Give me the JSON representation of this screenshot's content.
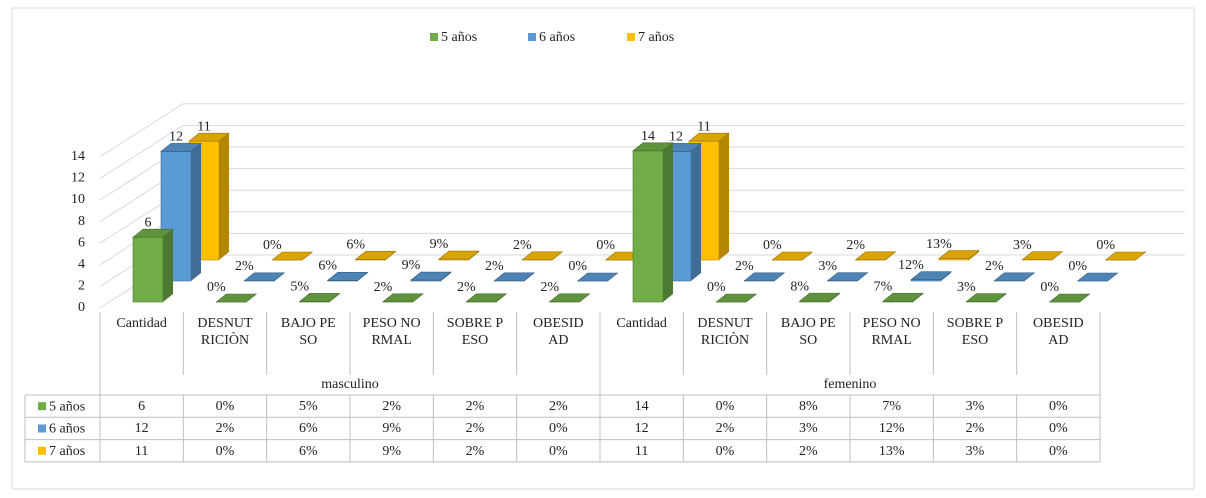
{
  "chart_data": {
    "type": "bar3d",
    "groups": [
      "masculino",
      "femenino"
    ],
    "categories": [
      "Cantidad",
      "DESNUTRICIÒN",
      "BAJO PESO",
      "PESO NORMAL",
      "SOBRE PESO",
      "OBESIDAD",
      "Cantidad",
      "DESNUTRICIÒN",
      "BAJO PESO",
      "PESO NORMAL",
      "SOBRE PESO",
      "OBESIDAD"
    ],
    "series": [
      {
        "name": "5 años",
        "color": "#70ad47",
        "values": [
          6,
          0,
          0.05,
          0.02,
          0.02,
          0.02,
          14,
          0,
          0.08,
          0.07,
          0.03,
          0
        ],
        "value_labels": [
          "6",
          "0%",
          "5%",
          "2%",
          "2%",
          "2%",
          "14",
          "0%",
          "8%",
          "7%",
          "3%",
          "0%"
        ]
      },
      {
        "name": "6 años",
        "color": "#5b9bd5",
        "values": [
          12,
          0.02,
          0.06,
          0.09,
          0.02,
          0,
          12,
          0.02,
          0.03,
          0.12,
          0.02,
          0
        ],
        "value_labels": [
          "12",
          "2%",
          "6%",
          "9%",
          "2%",
          "0%",
          "12",
          "2%",
          "3%",
          "12%",
          "2%",
          "0%"
        ]
      },
      {
        "name": "7 años",
        "color": "#ffc000",
        "values": [
          11,
          0,
          0.06,
          0.09,
          0.02,
          0,
          11,
          0,
          0.02,
          0.13,
          0.03,
          0
        ],
        "value_labels": [
          "11",
          "0%",
          "6%",
          "9%",
          "2%",
          "0%",
          "11",
          "0%",
          "2%",
          "13%",
          "3%",
          "0%"
        ]
      }
    ],
    "ylim": [
      0,
      14
    ],
    "yticks": [
      0,
      2,
      4,
      6,
      8,
      10,
      12,
      14
    ],
    "grid": true,
    "legend": "top"
  }
}
